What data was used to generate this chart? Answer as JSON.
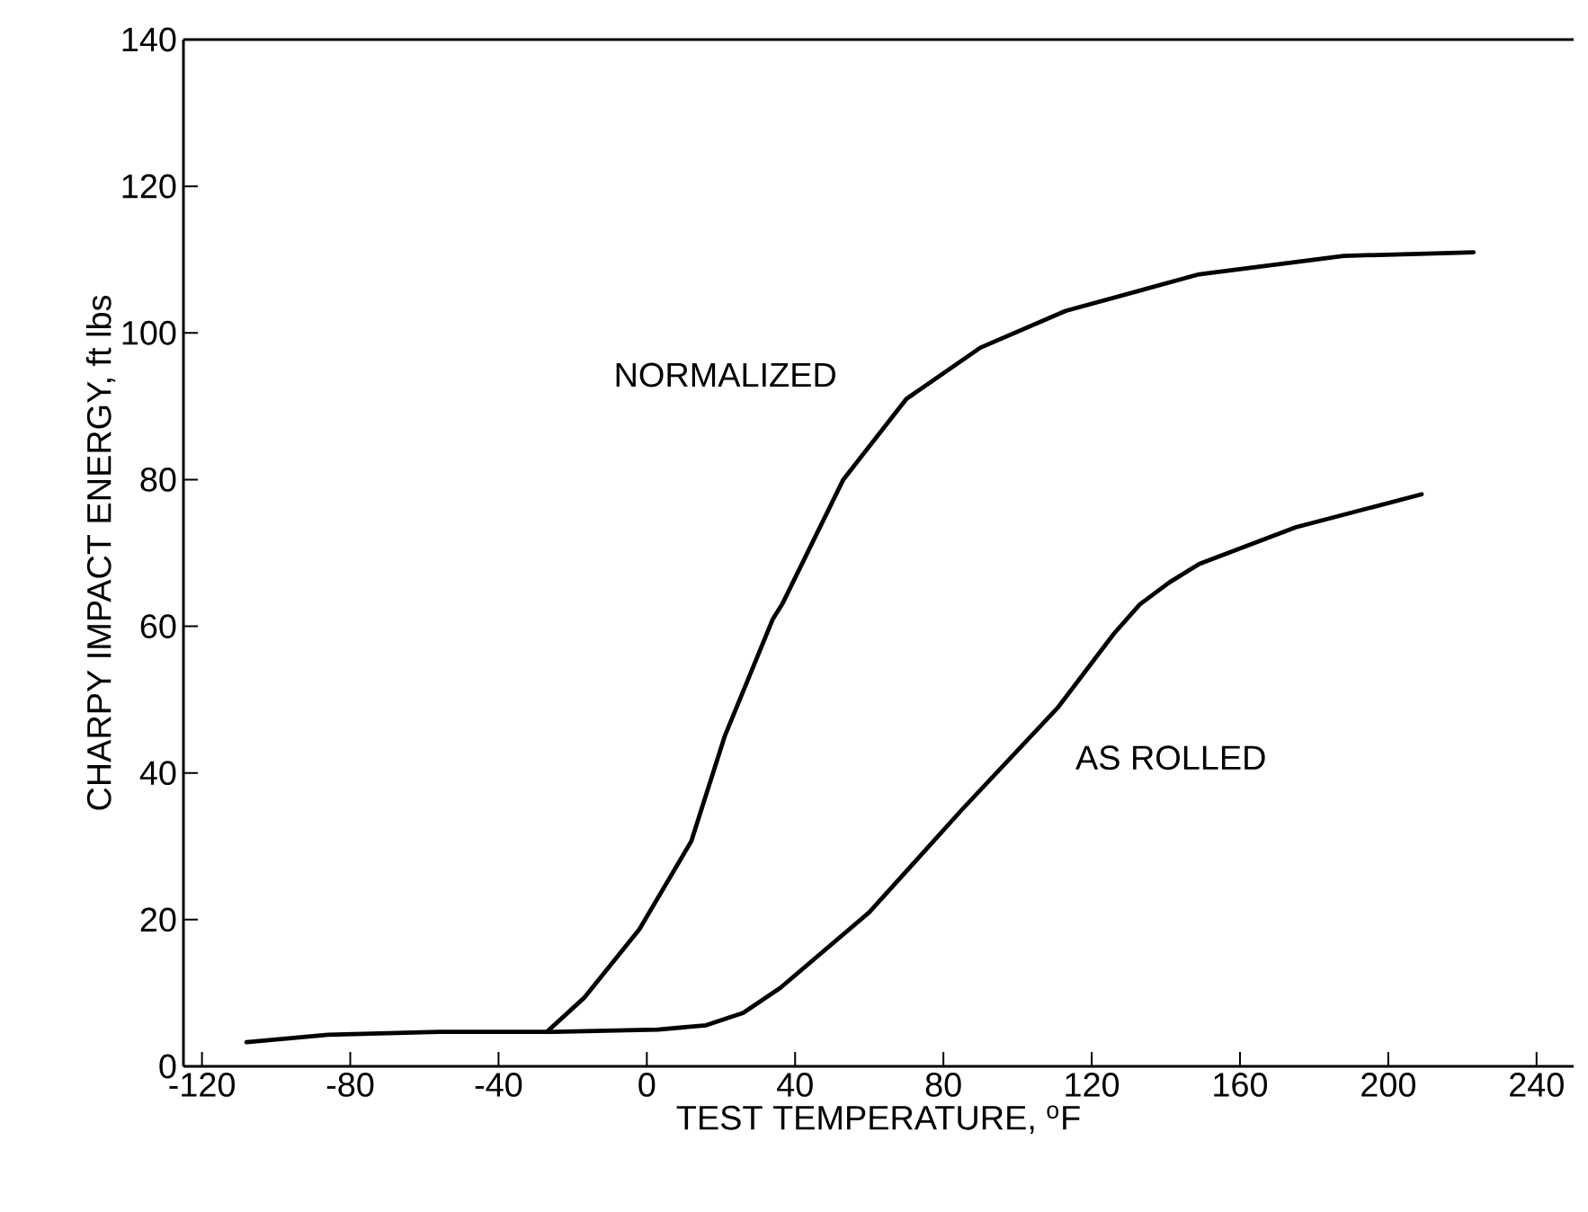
{
  "chart_data": {
    "type": "line",
    "xlabel": "TEST TEMPERATURE, $^{o}$F",
    "ylabel": "CHARPY IMPACT ENERGY, ft lbs",
    "xlim": [
      -125,
      250
    ],
    "ylim": [
      0,
      140
    ],
    "xticks": [
      -120,
      -80,
      -40,
      0,
      40,
      80,
      120,
      160,
      200,
      240
    ],
    "yticks": [
      0,
      20,
      40,
      60,
      80,
      100,
      120,
      140
    ],
    "grid": false,
    "marker": "none",
    "line_style": "solid",
    "series": [
      {
        "name": "NORMALIZED",
        "color": "#000000",
        "x": [
          -27,
          -17,
          -2,
          12,
          21,
          34,
          36.5,
          53,
          70,
          90,
          113,
          149,
          188,
          223
        ],
        "values": [
          4.7,
          9.3,
          18.7,
          30.7,
          45,
          61,
          63,
          80,
          91,
          98,
          103,
          108,
          110.5,
          111
        ]
      },
      {
        "name": "AS ROLLED",
        "color": "#000000",
        "x": [
          -108,
          -86,
          -56,
          -25,
          3,
          16,
          26,
          36,
          60,
          85,
          111,
          126,
          133,
          141,
          149,
          175,
          209
        ],
        "values": [
          3.3,
          4.3,
          4.7,
          4.7,
          5,
          5.6,
          7.3,
          10.7,
          21,
          35,
          49,
          59,
          63,
          66,
          68.5,
          73.5,
          78
        ]
      }
    ]
  }
}
